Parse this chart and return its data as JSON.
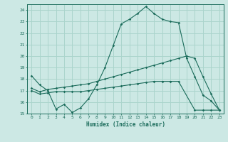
{
  "xlabel": "Humidex (Indice chaleur)",
  "bg_color": "#cce8e4",
  "line_color": "#1a6b5a",
  "grid_color": "#aad4cc",
  "xlim": [
    -0.5,
    23.5
  ],
  "ylim": [
    15,
    24.5
  ],
  "yticks": [
    15,
    16,
    17,
    18,
    19,
    20,
    21,
    22,
    23,
    24
  ],
  "xticks": [
    0,
    1,
    2,
    3,
    4,
    5,
    6,
    7,
    8,
    9,
    10,
    11,
    12,
    13,
    14,
    15,
    16,
    17,
    18,
    19,
    20,
    21,
    22,
    23
  ],
  "line1_x": [
    0,
    1,
    2,
    3,
    4,
    5,
    6,
    7,
    8,
    9,
    10,
    11,
    12,
    13,
    14,
    15,
    16,
    17,
    18,
    19,
    20,
    21,
    22,
    23
  ],
  "line1_y": [
    18.3,
    17.5,
    17.0,
    15.4,
    15.8,
    15.1,
    15.5,
    16.3,
    17.5,
    19.0,
    20.9,
    22.8,
    23.2,
    23.7,
    24.3,
    23.7,
    23.2,
    23.0,
    22.9,
    19.8,
    18.2,
    16.6,
    16.1,
    15.3
  ],
  "line2_x": [
    0,
    1,
    2,
    3,
    4,
    5,
    6,
    7,
    8,
    9,
    10,
    11,
    12,
    13,
    14,
    15,
    16,
    17,
    18,
    19,
    20,
    21,
    22,
    23
  ],
  "line2_y": [
    17.2,
    16.9,
    17.1,
    17.2,
    17.3,
    17.4,
    17.5,
    17.6,
    17.8,
    18.0,
    18.2,
    18.4,
    18.6,
    18.8,
    19.0,
    19.2,
    19.4,
    19.6,
    19.8,
    20.0,
    19.8,
    18.2,
    16.7,
    15.3
  ],
  "line3_x": [
    0,
    1,
    2,
    3,
    4,
    5,
    6,
    7,
    8,
    9,
    10,
    11,
    12,
    13,
    14,
    15,
    16,
    17,
    18,
    20,
    21,
    22,
    23
  ],
  "line3_y": [
    17.0,
    16.7,
    16.8,
    16.9,
    16.9,
    16.9,
    16.9,
    17.0,
    17.1,
    17.2,
    17.3,
    17.4,
    17.5,
    17.6,
    17.7,
    17.8,
    17.8,
    17.8,
    17.8,
    15.3,
    15.3,
    15.3,
    15.3
  ]
}
